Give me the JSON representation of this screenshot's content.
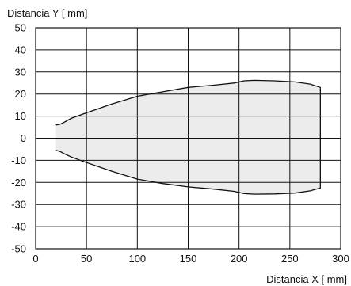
{
  "chart_data": {
    "type": "area",
    "title": "",
    "xlabel": "Distancia X [ mm]",
    "ylabel": "Distancia Y [ mm]",
    "xlim": [
      0,
      300
    ],
    "ylim": [
      -50,
      50
    ],
    "xticks": [
      0,
      50,
      100,
      150,
      200,
      250,
      300
    ],
    "yticks": [
      50,
      40,
      30,
      20,
      10,
      0,
      -10,
      -20,
      -30,
      -40,
      -50
    ],
    "grid": true,
    "legend": "none",
    "colors": {
      "fill": "#ececec",
      "line": "#111111",
      "grid": "#111111"
    },
    "series": [
      {
        "x": [
          20,
          24,
          28,
          35,
          50,
          75,
          100,
          125,
          150,
          175,
          195,
          205,
          215,
          235,
          255,
          270,
          280,
          280
        ],
        "y": [
          6.0,
          6.3,
          7.2,
          9.0,
          11.5,
          15.5,
          19.0,
          21.0,
          23.0,
          24.0,
          25.0,
          26.0,
          26.2,
          26.0,
          25.5,
          24.5,
          23.0,
          22.5
        ]
      },
      {
        "x": [
          20,
          24,
          28,
          35,
          50,
          75,
          100,
          125,
          150,
          175,
          195,
          205,
          215,
          235,
          255,
          270,
          280,
          280
        ],
        "y": [
          -5.5,
          -6.0,
          -7.0,
          -8.5,
          -11.0,
          -15.0,
          -18.5,
          -20.5,
          -22.0,
          -23.0,
          -24.0,
          -25.0,
          -25.3,
          -25.2,
          -24.8,
          -23.8,
          -22.5,
          -22.0
        ]
      }
    ]
  }
}
